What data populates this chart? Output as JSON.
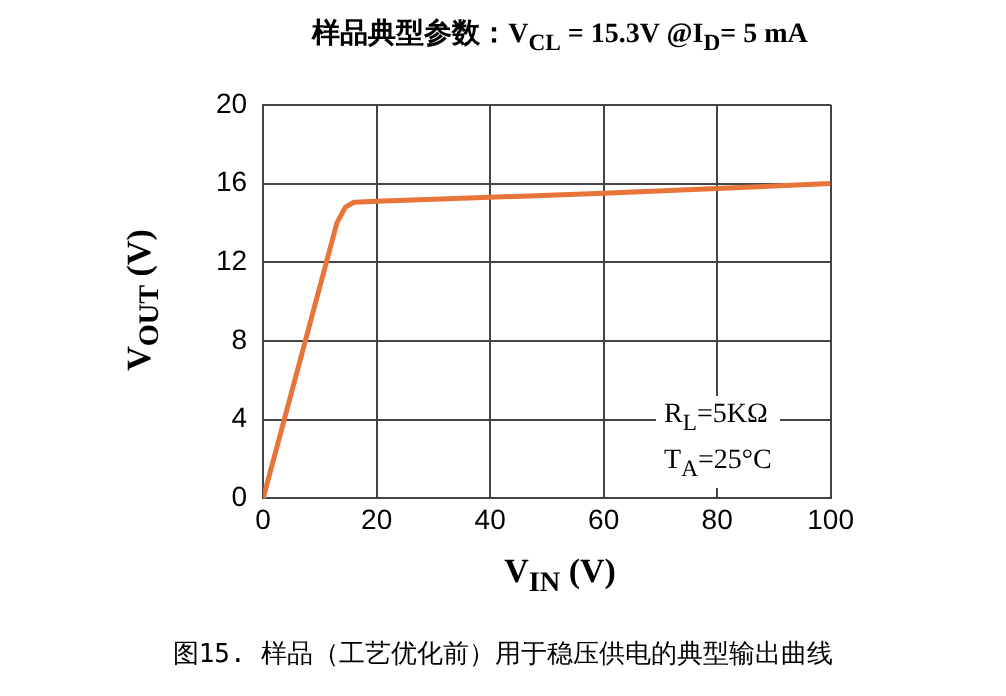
{
  "chart_data": {
    "type": "line",
    "title": "样品典型参数：V$_{CL}$ = 15.3V @I$_{D}$= 5 mA",
    "xlabel": "V$_{IN}$ (V)",
    "ylabel": "V$_{OUT}$ (V)",
    "x": [
      0,
      13,
      14.5,
      16,
      20,
      40,
      60,
      80,
      100
    ],
    "series": [
      {
        "color": "#e8743a",
        "values": [
          0,
          14.0,
          14.8,
          15.05,
          15.1,
          15.3,
          15.5,
          15.75,
          16
        ]
      }
    ],
    "xlim": [
      0,
      100
    ],
    "ylim": [
      0,
      20
    ],
    "xticks": [
      0,
      20,
      40,
      60,
      80,
      100
    ],
    "yticks": [
      0,
      4,
      8,
      12,
      16,
      20
    ],
    "grid": true,
    "marker": "none",
    "line_style": "solid",
    "annotations": [
      "R$_{L}$=5KΩ\nT$_{A}$=25°C",
      "图15. 样品（工艺优化前）用于稳压供电的典型输出曲线"
    ]
  }
}
